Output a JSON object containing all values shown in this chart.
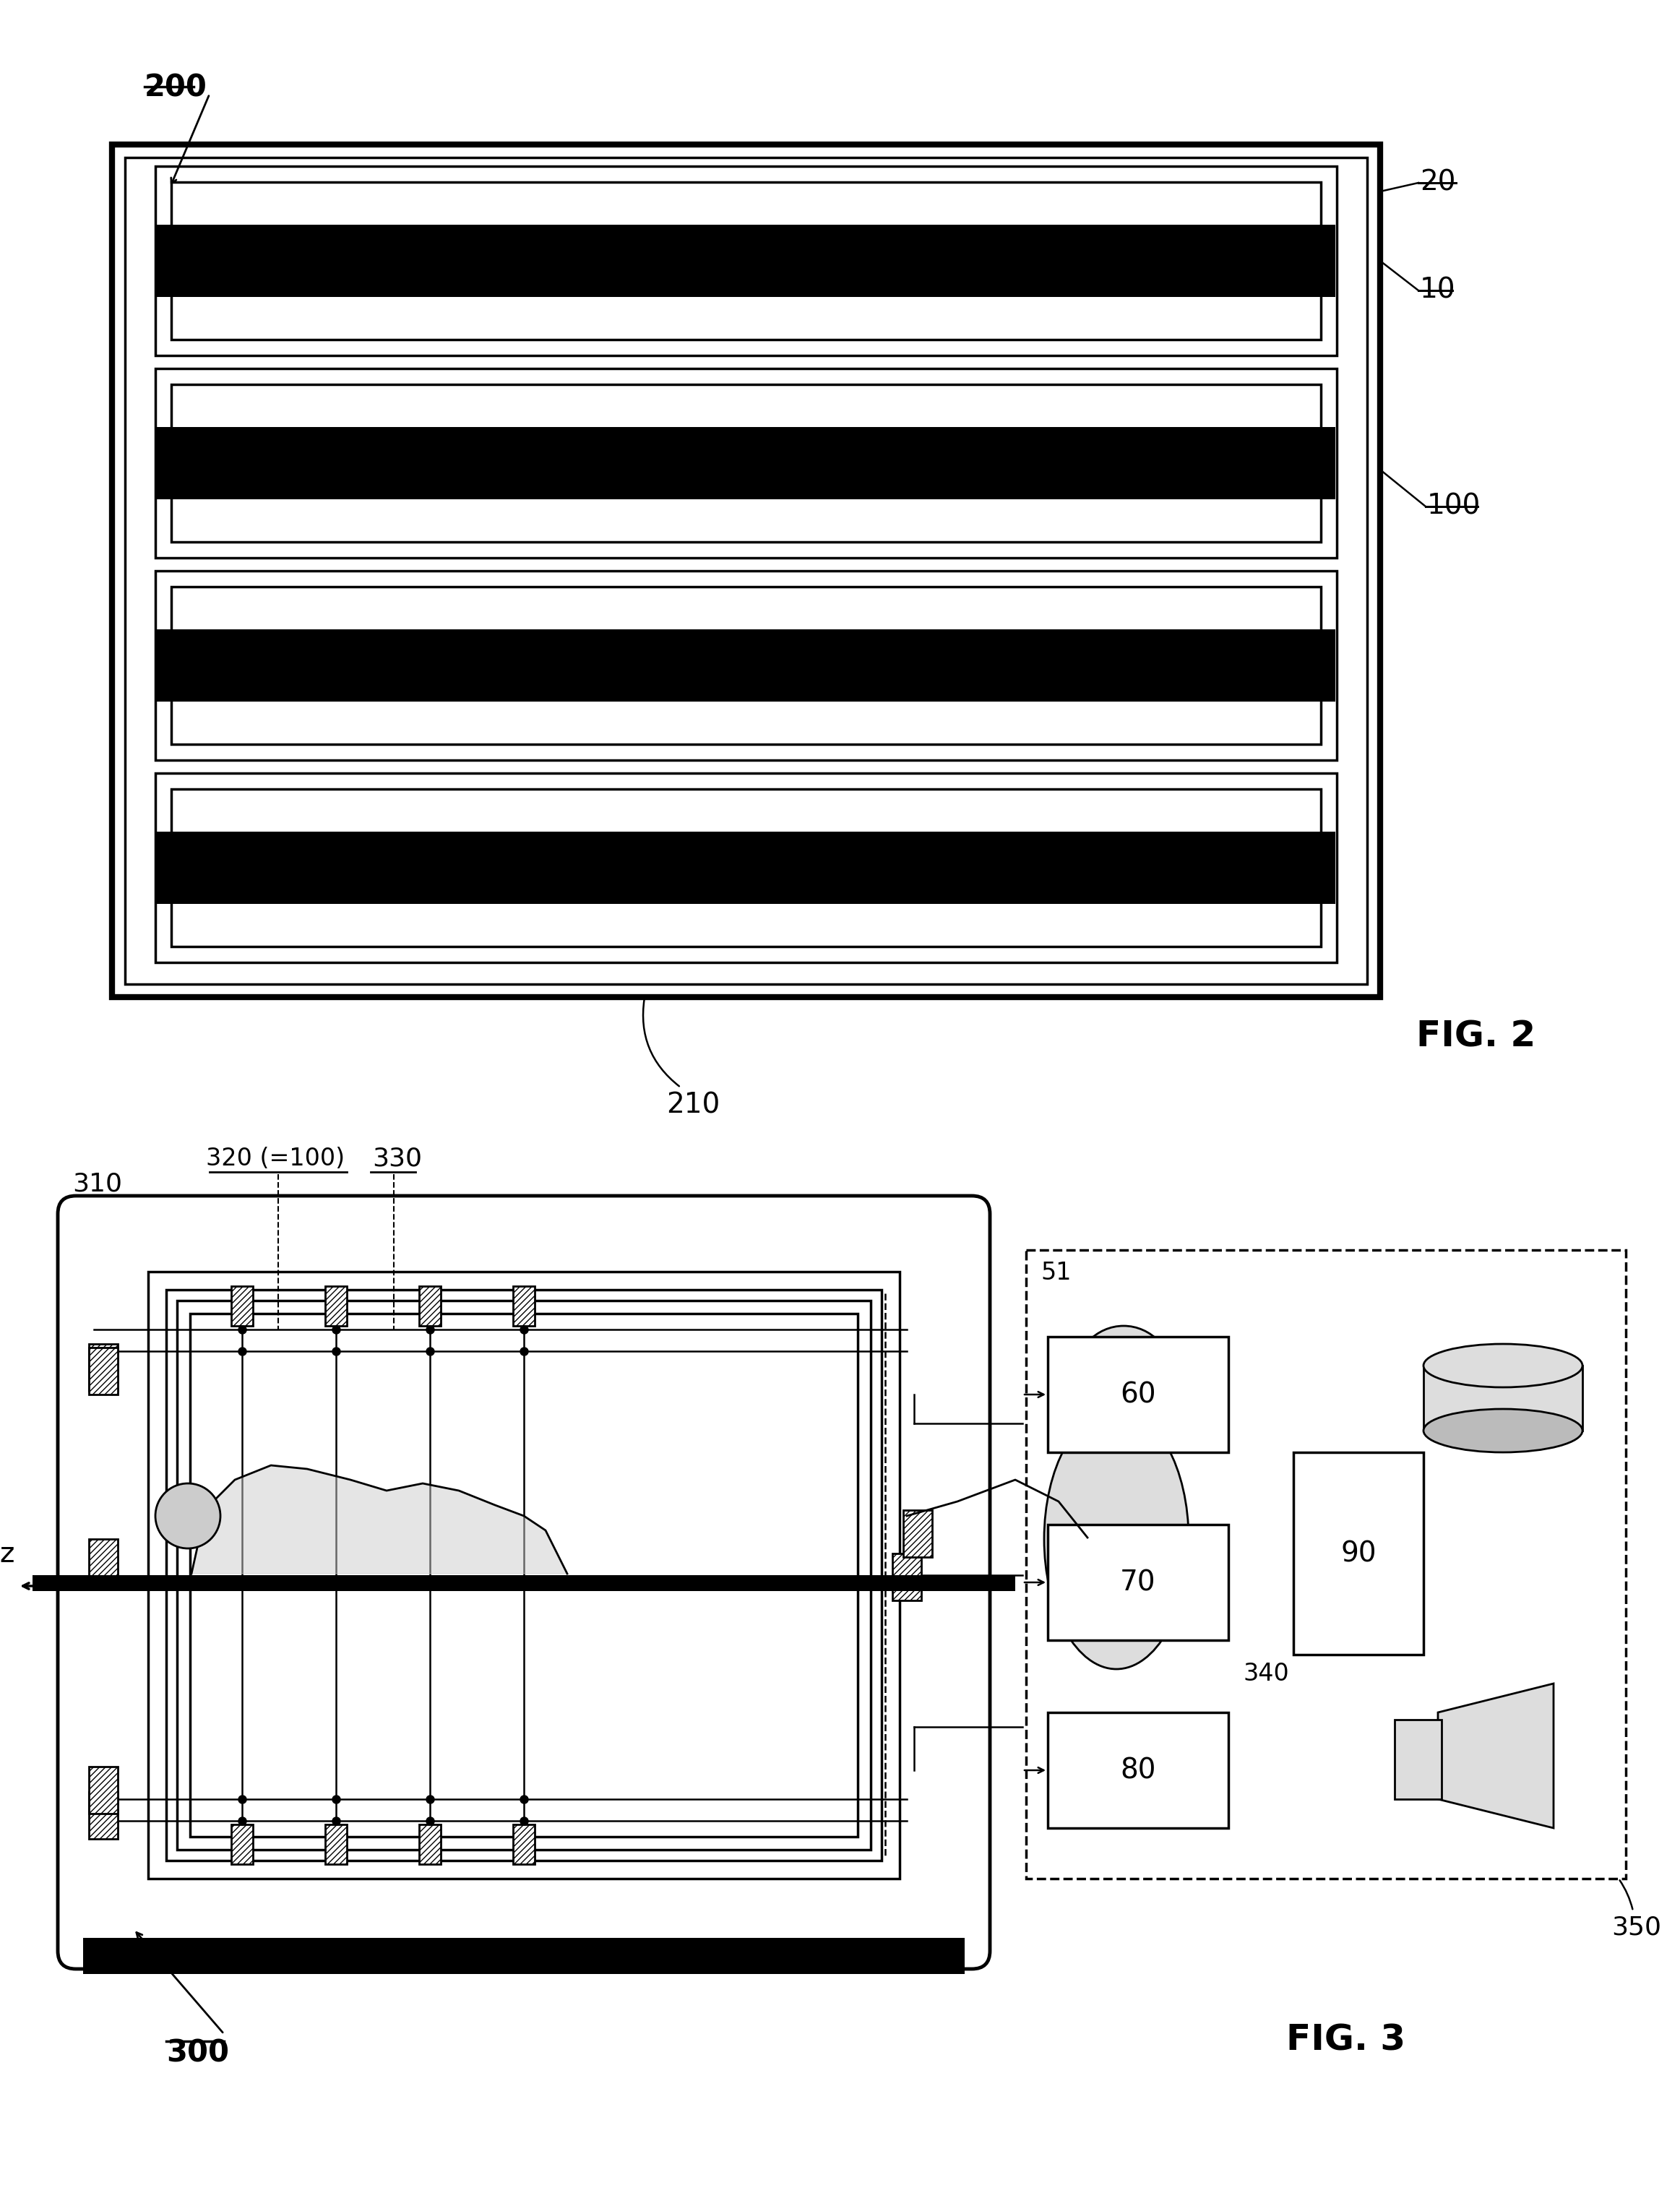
{
  "fig_width": 23.25,
  "fig_height": 30.6,
  "bg_color": "#ffffff",
  "fig2": {
    "label_200": "200",
    "label_210": "210",
    "label_20": "20",
    "label_10": "10",
    "label_100": "100",
    "fig_label": "FIG. 2"
  },
  "fig3": {
    "label_300": "300",
    "label_310": "310",
    "label_320": "320 (=100)",
    "label_330": "330",
    "label_51": "51",
    "label_60": "60",
    "label_70": "70",
    "label_80": "80",
    "label_90": "90",
    "label_340": "340",
    "label_350": "350",
    "label_z": "z",
    "fig_label": "FIG. 3"
  }
}
